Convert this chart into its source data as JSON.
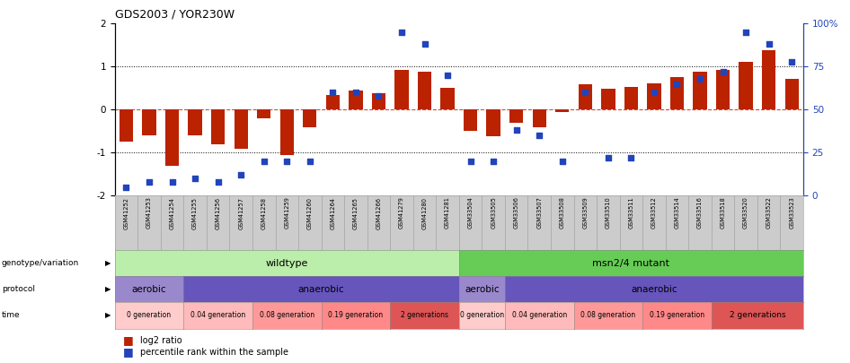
{
  "title": "GDS2003 / YOR230W",
  "samples": [
    "GSM41252",
    "GSM41253",
    "GSM41254",
    "GSM41255",
    "GSM41256",
    "GSM41257",
    "GSM41258",
    "GSM41259",
    "GSM41260",
    "GSM41264",
    "GSM41265",
    "GSM41266",
    "GSM41279",
    "GSM41280",
    "GSM41281",
    "GSM33504",
    "GSM33505",
    "GSM33506",
    "GSM33507",
    "GSM33508",
    "GSM33509",
    "GSM33510",
    "GSM33511",
    "GSM33512",
    "GSM33514",
    "GSM33516",
    "GSM33518",
    "GSM33520",
    "GSM33522",
    "GSM33523"
  ],
  "log2_ratio": [
    -0.75,
    -0.6,
    -1.3,
    -0.6,
    -0.8,
    -0.9,
    -0.2,
    -1.05,
    -0.4,
    0.35,
    0.45,
    0.38,
    0.92,
    0.88,
    0.5,
    -0.5,
    -0.62,
    -0.3,
    -0.4,
    -0.05,
    0.58,
    0.48,
    0.52,
    0.62,
    0.75,
    0.88,
    0.92,
    1.12,
    1.38,
    0.72
  ],
  "percentile": [
    5,
    8,
    8,
    10,
    8,
    12,
    20,
    20,
    20,
    60,
    60,
    58,
    95,
    88,
    70,
    20,
    20,
    38,
    35,
    20,
    60,
    22,
    22,
    60,
    65,
    68,
    72,
    95,
    88,
    78
  ],
  "bar_color": "#bb2200",
  "dot_color": "#2244bb",
  "ylim": [
    -2,
    2
  ],
  "y2lim": [
    0,
    100
  ],
  "genotype_wildtype_range": [
    0,
    15
  ],
  "genotype_mutant_range": [
    15,
    30
  ],
  "genotype_wildtype_label": "wildtype",
  "genotype_mutant_label": "msn2/4 mutant",
  "genotype_wildtype_color": "#bbeeaa",
  "genotype_mutant_color": "#66cc55",
  "protocol_aerobic_color": "#9988cc",
  "protocol_anaerobic_color": "#6655bb",
  "protocol_rows": [
    {
      "label": "aerobic",
      "start": 0,
      "end": 3
    },
    {
      "label": "anaerobic",
      "start": 3,
      "end": 15
    },
    {
      "label": "aerobic",
      "start": 15,
      "end": 17
    },
    {
      "label": "anaerobic",
      "start": 17,
      "end": 30
    }
  ],
  "time_rows": [
    {
      "label": "0 generation",
      "start": 0,
      "end": 3,
      "color": "#ffcccc"
    },
    {
      "label": "0.04 generation",
      "start": 3,
      "end": 6,
      "color": "#ffbbbb"
    },
    {
      "label": "0.08 generation",
      "start": 6,
      "end": 9,
      "color": "#ff9999"
    },
    {
      "label": "0.19 generation",
      "start": 9,
      "end": 12,
      "color": "#ff8888"
    },
    {
      "label": "2 generations",
      "start": 12,
      "end": 15,
      "color": "#dd5555"
    },
    {
      "label": "0 generation",
      "start": 15,
      "end": 17,
      "color": "#ffcccc"
    },
    {
      "label": "0.04 generation",
      "start": 17,
      "end": 20,
      "color": "#ffbbbb"
    },
    {
      "label": "0.08 generation",
      "start": 20,
      "end": 23,
      "color": "#ff9999"
    },
    {
      "label": "0.19 generation",
      "start": 23,
      "end": 26,
      "color": "#ff8888"
    },
    {
      "label": "2 generations",
      "start": 26,
      "end": 30,
      "color": "#dd5555"
    }
  ],
  "row_labels": [
    "genotype/variation",
    "protocol",
    "time"
  ],
  "legend_red": "log2 ratio",
  "legend_blue": "percentile rank within the sample",
  "tick_box_color": "#cccccc",
  "tick_box_edge_color": "#999999"
}
